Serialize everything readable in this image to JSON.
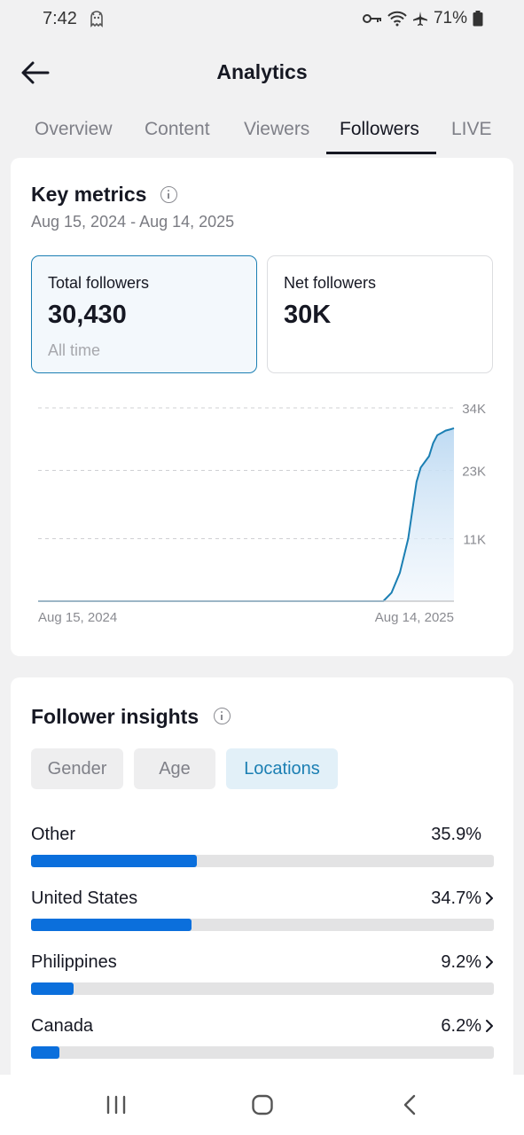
{
  "status_bar": {
    "time": "7:42",
    "battery": "71%",
    "icons": [
      "ghost-icon",
      "key-icon",
      "wifi-icon",
      "airplane-icon",
      "battery-icon"
    ]
  },
  "header": {
    "title": "Analytics",
    "back_icon": "arrow-left-icon"
  },
  "tabs": [
    {
      "label": "Overview",
      "active": false
    },
    {
      "label": "Content",
      "active": false
    },
    {
      "label": "Viewers",
      "active": false
    },
    {
      "label": "Followers",
      "active": true
    },
    {
      "label": "LIVE",
      "active": false
    }
  ],
  "key_metrics": {
    "title": "Key metrics",
    "date_range": "Aug 15, 2024 - Aug 14, 2025",
    "total_followers": {
      "label": "Total followers",
      "value": "30,430",
      "sub": "All time"
    },
    "net_followers": {
      "label": "Net followers",
      "value": "30K"
    }
  },
  "chart_data": {
    "type": "area",
    "xlabel": "",
    "ylabel": "",
    "x_tick_labels": [
      "Aug 15, 2024",
      "Aug 14, 2025"
    ],
    "y_tick_labels": [
      "34K",
      "23K",
      "11K"
    ],
    "ylim": [
      0,
      34000
    ],
    "grid": true,
    "color": "#1b7fb3",
    "x": [
      0.0,
      0.83,
      0.85,
      0.87,
      0.88,
      0.89,
      0.9,
      0.91,
      0.92,
      0.93,
      0.94,
      0.95,
      0.96,
      0.97,
      0.98,
      0.99,
      1.0
    ],
    "values": [
      0,
      0,
      1500,
      5000,
      8000,
      11000,
      16000,
      21000,
      23500,
      24500,
      25500,
      27800,
      29200,
      29600,
      30000,
      30200,
      30430
    ]
  },
  "follower_insights": {
    "title": "Follower insights",
    "tabs": [
      {
        "label": "Gender",
        "active": false
      },
      {
        "label": "Age",
        "active": false
      },
      {
        "label": "Locations",
        "active": true
      }
    ],
    "locations": [
      {
        "name": "Other",
        "percent": "35.9%",
        "value": 35.9,
        "has_chevron": false
      },
      {
        "name": "United States",
        "percent": "34.7%",
        "value": 34.7,
        "has_chevron": true
      },
      {
        "name": "Philippines",
        "percent": "9.2%",
        "value": 9.2,
        "has_chevron": true
      },
      {
        "name": "Canada",
        "percent": "6.2%",
        "value": 6.2,
        "has_chevron": true
      }
    ]
  },
  "nav_bar": {
    "icons": [
      "recents-icon",
      "home-icon",
      "back-icon"
    ]
  },
  "colors": {
    "accent": "#1b7fb3",
    "bar": "#0b6fdc",
    "text": "#161823",
    "muted": "#7f8088"
  }
}
